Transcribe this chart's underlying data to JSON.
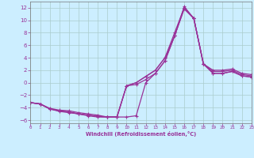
{
  "xlabel": "Windchill (Refroidissement éolien,°C)",
  "xlim": [
    0,
    23
  ],
  "ylim": [
    -6.5,
    13
  ],
  "xticks": [
    0,
    1,
    2,
    3,
    4,
    5,
    6,
    7,
    8,
    9,
    10,
    11,
    12,
    13,
    14,
    15,
    16,
    17,
    18,
    19,
    20,
    21,
    22,
    23
  ],
  "yticks": [
    -6,
    -4,
    -2,
    0,
    2,
    4,
    6,
    8,
    10,
    12
  ],
  "background_color": "#cceeff",
  "grid_color": "#aacccc",
  "line_color": "#993399",
  "curves": [
    {
      "x": [
        0,
        1,
        2,
        3,
        4,
        5,
        6,
        7,
        8,
        9,
        10,
        11,
        12,
        13,
        14,
        15,
        16,
        17,
        18,
        19,
        20,
        21,
        22,
        23
      ],
      "y": [
        -3.2,
        -3.4,
        -4.1,
        -4.4,
        -4.5,
        -4.8,
        -5.0,
        -5.2,
        -5.5,
        -5.5,
        -5.5,
        -5.3,
        0.0,
        1.5,
        3.5,
        7.5,
        12.2,
        10.3,
        3.0,
        2.0,
        2.0,
        2.2,
        1.5,
        1.3
      ]
    },
    {
      "x": [
        0,
        1,
        2,
        3,
        4,
        5,
        6,
        7,
        8,
        9,
        10,
        11,
        12,
        13,
        14,
        15,
        16,
        17,
        18,
        19,
        20,
        21,
        22,
        23
      ],
      "y": [
        -3.2,
        -3.4,
        -4.2,
        -4.5,
        -4.7,
        -5.0,
        -5.2,
        -5.4,
        -5.5,
        -5.5,
        -0.5,
        -0.3,
        0.5,
        1.5,
        3.5,
        7.5,
        12.0,
        10.3,
        3.0,
        1.8,
        1.8,
        2.0,
        1.3,
        1.1
      ]
    },
    {
      "x": [
        0,
        1,
        2,
        3,
        4,
        5,
        6,
        7,
        8,
        9,
        10,
        11,
        12,
        13,
        14,
        15,
        16,
        17,
        18,
        19,
        20,
        21,
        22,
        23
      ],
      "y": [
        -3.2,
        -3.4,
        -4.2,
        -4.5,
        -4.7,
        -5.0,
        -5.2,
        -5.4,
        -5.5,
        -5.5,
        -0.5,
        0.0,
        1.0,
        2.0,
        4.0,
        8.0,
        12.0,
        10.3,
        3.0,
        1.5,
        1.5,
        1.8,
        1.1,
        0.9
      ]
    },
    {
      "x": [
        0,
        1,
        2,
        3,
        4,
        5,
        6,
        7,
        8,
        9,
        10,
        11,
        12,
        13,
        14,
        15,
        16,
        17,
        18,
        19,
        20,
        21,
        22,
        23
      ],
      "y": [
        -3.2,
        -3.4,
        -4.2,
        -4.6,
        -4.8,
        -5.0,
        -5.3,
        -5.5,
        -5.5,
        -5.5,
        -0.5,
        0.0,
        1.0,
        2.0,
        4.0,
        7.5,
        11.8,
        10.3,
        3.0,
        1.5,
        1.5,
        1.8,
        1.1,
        0.9
      ]
    }
  ]
}
